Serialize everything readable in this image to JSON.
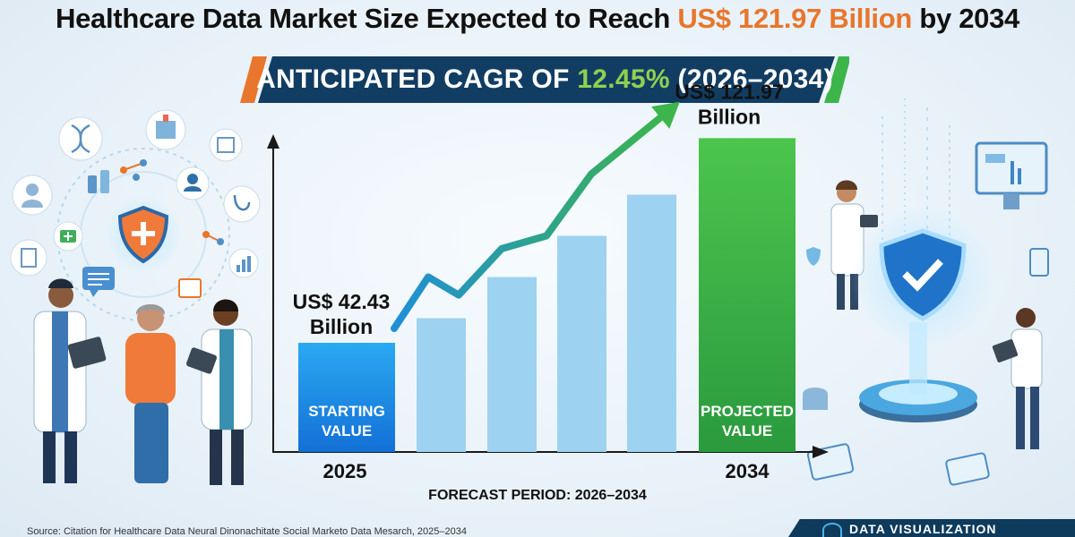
{
  "header": {
    "title_pre": "Healthcare Data Market Size Expected to Reach ",
    "title_highlight": "US$ 121.97 Billion",
    "title_post": " by 2034",
    "banner_pre": "ANTICIPATED CAGR OF ",
    "banner_highlight": "12.45%",
    "banner_post": " (2026–2034)"
  },
  "chart_data": {
    "type": "bar",
    "categories": [
      "2025",
      "",
      "",
      "",
      "",
      "",
      "2034"
    ],
    "values": [
      42.43,
      36,
      52,
      68,
      84,
      100,
      121.97
    ],
    "ylim": [
      0,
      160
    ],
    "title": "",
    "xlabel": "FORECAST PERIOD: 2026–2034",
    "ylabel": "",
    "start_label_value": "US$ 42.43",
    "start_label_unit": "Billion",
    "end_label_value": "US$ 121.97",
    "end_label_unit": "Billion",
    "start_bar_text": [
      "STARTING",
      "VALUE"
    ],
    "end_bar_text": [
      "PROJECTED",
      "VALUE"
    ],
    "trend_values": [
      48,
      68,
      61,
      79,
      84,
      108,
      133
    ],
    "colors": {
      "start_bar_top": "#2aa9f2",
      "start_bar_bottom": "#1370d6",
      "mid_bar": "#9dd2f1",
      "end_bar_top": "#4cc54d",
      "end_bar_bottom": "#2a9a3e",
      "trend_start": "#1f8fd6",
      "trend_end": "#3cb54a",
      "axis": "#1a1a1a"
    }
  },
  "footer": {
    "source": "Source: Citation for Healthcare Data Neural Dinonachitate Social Marketo Data Mesarch, 2025–2034",
    "badge_label": "DATA VISUALIZATION"
  },
  "colors": {
    "highlight_orange": "#e8762c",
    "banner_navy": "#123d63",
    "banner_green_pct": "#8fd14f"
  }
}
